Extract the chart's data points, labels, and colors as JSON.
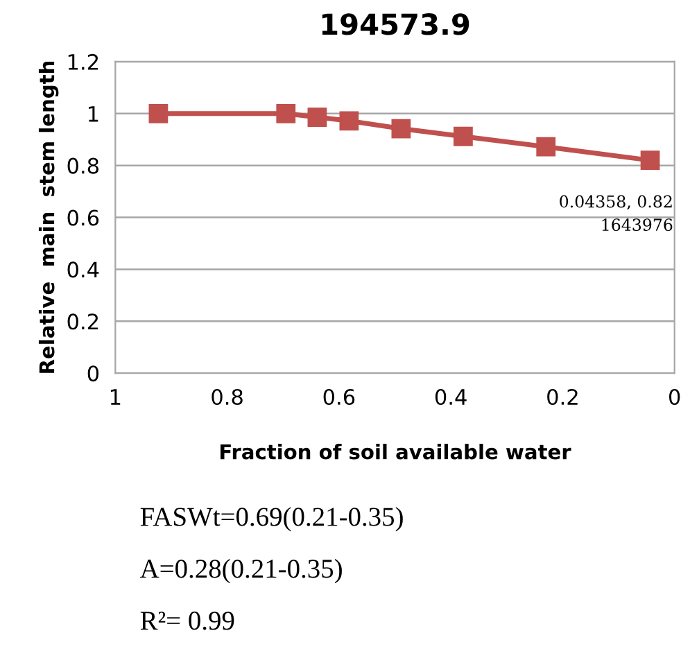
{
  "chart_data": {
    "type": "line",
    "title": "194573.9",
    "xlabel": "Fraction of soil available water",
    "ylabel": "Relative  main  stem length",
    "x": [
      0.923,
      0.695,
      0.639,
      0.582,
      0.489,
      0.378,
      0.23,
      0.04358
    ],
    "series": [
      {
        "color": "#c0504d",
        "values": [
          1.0,
          1.0,
          0.986,
          0.972,
          0.942,
          0.912,
          0.872,
          0.82
        ]
      }
    ],
    "xlim": [
      1,
      0
    ],
    "xticks": [
      1,
      0.8,
      0.6,
      0.4,
      0.2,
      0
    ],
    "ylim": [
      0,
      1.2
    ],
    "yticks": [
      0,
      0.2,
      0.4,
      0.6,
      0.8,
      1,
      1.2
    ],
    "grid": "y",
    "marker": "square",
    "line_style": "solid",
    "annotations": [
      {
        "text": "0.04358, 0.82\n1643976",
        "x": 0.04358,
        "y": 0.82
      },
      "FASWt=0.69(0.21-0.35)",
      "A=0.28(0.21-0.35)",
      "R²= 0.99"
    ]
  }
}
